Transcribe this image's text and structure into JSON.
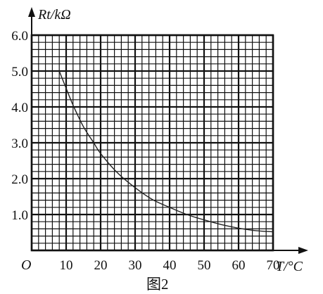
{
  "chart_data": {
    "type": "line",
    "xlabel": "T/°C",
    "ylabel": "Rt/kΩ",
    "origin_label": "O",
    "caption": "图2",
    "xlim": [
      0,
      70
    ],
    "ylim": [
      0,
      6.0
    ],
    "x_ticks": [
      "10",
      "20",
      "30",
      "40",
      "50",
      "60",
      "70"
    ],
    "y_ticks": [
      "1.0",
      "2.0",
      "3.0",
      "4.0",
      "5.0",
      "6.0"
    ],
    "grid": true,
    "series": [
      {
        "x": [
          8,
          10,
          12,
          15,
          18,
          20,
          25,
          30,
          35,
          40,
          45,
          50,
          55,
          60,
          65,
          70
        ],
        "y": [
          5.0,
          4.52,
          4.05,
          3.45,
          3.0,
          2.7,
          2.15,
          1.75,
          1.42,
          1.2,
          1.0,
          0.85,
          0.72,
          0.62,
          0.55,
          0.52
        ]
      }
    ]
  }
}
